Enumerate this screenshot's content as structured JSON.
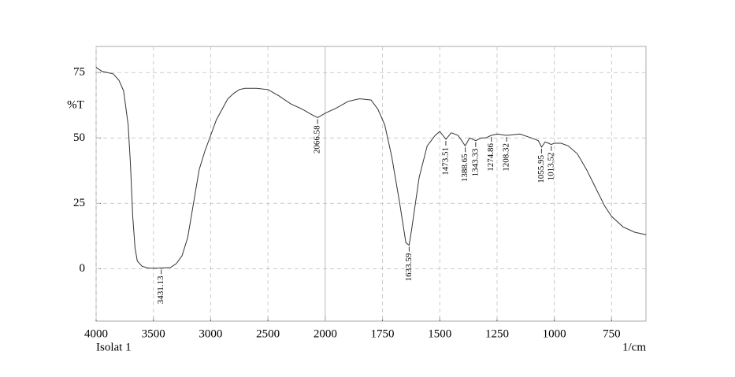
{
  "chart_data": {
    "type": "line",
    "x_label": "1/cm",
    "y_label": "%T",
    "sample": "Isolat 1",
    "xlim": [
      4000,
      600
    ],
    "x_break": 2000,
    "xticks": [
      4000,
      3500,
      3000,
      2500,
      2000,
      1750,
      1500,
      1250,
      1000,
      750
    ],
    "ylim": [
      -20,
      85
    ],
    "yticks": [
      0,
      25,
      50,
      75
    ],
    "grid": true,
    "series": [
      {
        "color": "#333333",
        "x": [
          4000,
          3950,
          3900,
          3850,
          3800,
          3760,
          3720,
          3700,
          3680,
          3660,
          3640,
          3600,
          3550,
          3500,
          3431,
          3350,
          3300,
          3250,
          3200,
          3150,
          3100,
          3050,
          3000,
          2950,
          2900,
          2850,
          2800,
          2750,
          2700,
          2600,
          2500,
          2400,
          2300,
          2200,
          2100,
          2066,
          2000,
          1950,
          1900,
          1850,
          1800,
          1770,
          1740,
          1710,
          1675,
          1648,
          1634,
          1623,
          1590,
          1555,
          1520,
          1500,
          1473,
          1450,
          1420,
          1389,
          1370,
          1343,
          1320,
          1300,
          1275,
          1250,
          1208,
          1150,
          1100,
          1070,
          1056,
          1040,
          1025,
          1014,
          1000,
          970,
          940,
          900,
          860,
          820,
          780,
          750,
          700,
          650,
          600
        ],
        "values": [
          77,
          75.5,
          75,
          74.5,
          72,
          68,
          55,
          40,
          20,
          8,
          3,
          1,
          0.3,
          0.2,
          0.3,
          0.5,
          2,
          5,
          12,
          25,
          38,
          45,
          51,
          57,
          61,
          65,
          67,
          68.5,
          69,
          69,
          68.5,
          66,
          63,
          61,
          58.5,
          57.8,
          59.5,
          61.5,
          64,
          65,
          64.5,
          61,
          55,
          43,
          25,
          10,
          9,
          15,
          35,
          47,
          51,
          52.5,
          49.5,
          52,
          51,
          47,
          50,
          49,
          50,
          50,
          51,
          51.5,
          51,
          51.5,
          50,
          49,
          46.5,
          48.5,
          48,
          47.5,
          48,
          48,
          47,
          44,
          38,
          31,
          24,
          20,
          16,
          14,
          13
        ]
      }
    ],
    "peaks": [
      {
        "x": 3431.13,
        "y": 0.3
      },
      {
        "x": 2066.58,
        "y": 57.8
      },
      {
        "x": 1633.59,
        "y": 9
      },
      {
        "x": 1473.51,
        "y": 49.5
      },
      {
        "x": 1388.65,
        "y": 47
      },
      {
        "x": 1343.33,
        "y": 49
      },
      {
        "x": 1274.86,
        "y": 51
      },
      {
        "x": 1208.32,
        "y": 51
      },
      {
        "x": 1055.95,
        "y": 46.5
      },
      {
        "x": 1013.52,
        "y": 47.5
      }
    ]
  }
}
